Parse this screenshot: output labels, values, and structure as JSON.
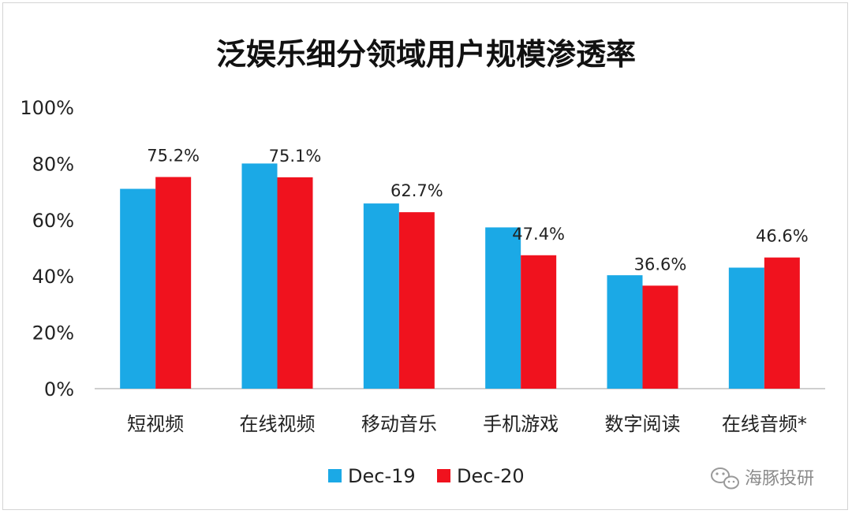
{
  "chart_data": {
    "type": "bar",
    "title": "泛娱乐细分领域用户规模渗透率",
    "categories": [
      "短视频",
      "在线视频",
      "移动音乐",
      "手机游戏",
      "数字阅读",
      "在线音频*"
    ],
    "series": [
      {
        "name": "Dec-19",
        "color": "#1ba9e6",
        "values": [
          71.0,
          80.0,
          65.8,
          57.3,
          40.3,
          43.0
        ]
      },
      {
        "name": "Dec-20",
        "color": "#f0121e",
        "values": [
          75.2,
          75.1,
          62.7,
          47.4,
          36.6,
          46.6
        ]
      }
    ],
    "data_labels": [
      "75.2%",
      "75.1%",
      "62.7%",
      "47.4%",
      "36.6%",
      "46.6%"
    ],
    "yticks": [
      "0%",
      "20%",
      "40%",
      "60%",
      "80%",
      "100%"
    ],
    "ylim": [
      0,
      100
    ],
    "grid": false,
    "legend_position": "bottom-center"
  },
  "watermark": {
    "text": "海豚投研",
    "icon": "wechat-icon"
  }
}
